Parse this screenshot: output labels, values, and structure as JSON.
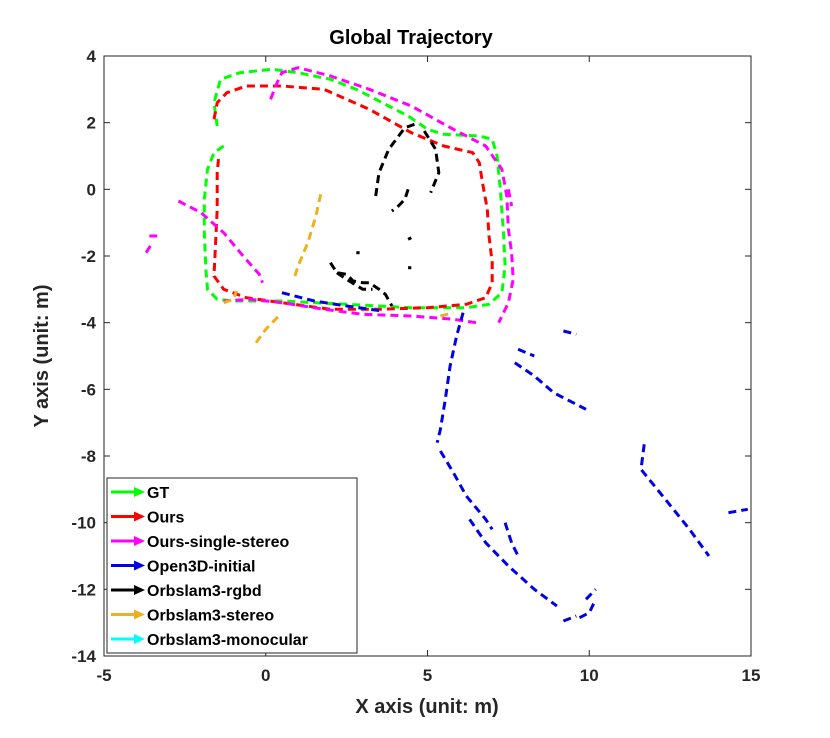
{
  "chart_data": {
    "type": "line",
    "title": "Global Trajectory",
    "xlabel": "X axis (unit: m)",
    "ylabel": "Y axis (unit: m)",
    "xlim": [
      -5,
      15
    ],
    "ylim": [
      -14,
      4
    ],
    "xticks": [
      "-5",
      "0",
      "5",
      "10",
      "15"
    ],
    "yticks": [
      "4",
      "2",
      "0",
      "-2",
      "-4",
      "-6",
      "-8",
      "-10",
      "-12",
      "-14"
    ],
    "xtick_values": [
      -5,
      0,
      5,
      10,
      15
    ],
    "ytick_values": [
      4,
      2,
      0,
      -2,
      -4,
      -6,
      -8,
      -10,
      -12,
      -14
    ],
    "grid": false,
    "legend_position": "bottom-left",
    "line_style": "dashed",
    "series": [
      {
        "name": "GT",
        "color": "#00ff00",
        "segments": [
          [
            [
              -1.3,
              1.3
            ],
            [
              -1.6,
              1.1
            ],
            [
              -1.8,
              0.6
            ],
            [
              -1.9,
              -0.3
            ],
            [
              -1.9,
              -1.3
            ],
            [
              -1.85,
              -2.4
            ],
            [
              -1.8,
              -3.0
            ],
            [
              -1.5,
              -3.3
            ],
            [
              -1.0,
              -3.35
            ],
            [
              0.5,
              -3.35
            ],
            [
              2.5,
              -3.45
            ],
            [
              4.5,
              -3.55
            ],
            [
              6.2,
              -3.55
            ],
            [
              6.9,
              -3.45
            ],
            [
              7.3,
              -3.1
            ],
            [
              7.4,
              -2.3
            ],
            [
              7.35,
              -1.3
            ],
            [
              7.25,
              0.0
            ],
            [
              7.15,
              1.0
            ],
            [
              7.0,
              1.5
            ],
            [
              6.6,
              1.6
            ],
            [
              5.5,
              1.65
            ],
            [
              5.0,
              1.8
            ],
            [
              4.4,
              2.2
            ],
            [
              3.6,
              2.6
            ],
            [
              2.8,
              3.0
            ],
            [
              2.0,
              3.3
            ],
            [
              1.0,
              3.5
            ],
            [
              0.2,
              3.6
            ],
            [
              -0.8,
              3.5
            ],
            [
              -1.4,
              3.3
            ],
            [
              -1.6,
              2.6
            ],
            [
              -1.5,
              1.9
            ]
          ]
        ]
      },
      {
        "name": "Ours",
        "color": "#ff0000",
        "segments": [
          [
            [
              -1.6,
              2.1
            ],
            [
              -1.5,
              2.6
            ],
            [
              -1.2,
              2.9
            ],
            [
              -0.6,
              3.1
            ],
            [
              0.5,
              3.1
            ],
            [
              1.8,
              3.0
            ],
            [
              3.2,
              2.4
            ],
            [
              4.5,
              1.7
            ],
            [
              5.5,
              1.3
            ],
            [
              6.4,
              1.1
            ],
            [
              6.6,
              0.8
            ],
            [
              6.7,
              0.2
            ],
            [
              6.85,
              -0.6
            ],
            [
              6.9,
              -1.4
            ],
            [
              7.0,
              -2.2
            ],
            [
              7.0,
              -2.8
            ],
            [
              6.8,
              -3.25
            ],
            [
              6.2,
              -3.45
            ],
            [
              5.0,
              -3.55
            ],
            [
              3.5,
              -3.6
            ],
            [
              2.0,
              -3.6
            ],
            [
              0.5,
              -3.4
            ],
            [
              -0.6,
              -3.25
            ],
            [
              -1.3,
              -3.0
            ],
            [
              -1.6,
              -2.6
            ],
            [
              -1.55,
              -1.6
            ],
            [
              -1.5,
              -0.6
            ],
            [
              -1.5,
              0.5
            ],
            [
              -1.45,
              1.0
            ]
          ]
        ]
      },
      {
        "name": "Ours-single-stereo",
        "color": "#ff00ff",
        "segments": [
          [
            [
              -3.7,
              -1.9
            ],
            [
              -3.5,
              -1.6
            ]
          ],
          [
            [
              -3.6,
              -1.4
            ],
            [
              -3.3,
              -1.4
            ]
          ],
          [
            [
              -2.7,
              -0.35
            ],
            [
              -2.0,
              -0.7
            ],
            [
              -1.3,
              -1.3
            ],
            [
              -0.7,
              -2.0
            ],
            [
              -0.2,
              -2.55
            ],
            [
              -0.1,
              -2.8
            ]
          ],
          [
            [
              0.15,
              2.7
            ],
            [
              0.35,
              3.2
            ],
            [
              0.5,
              3.5
            ],
            [
              1.0,
              3.65
            ],
            [
              2.0,
              3.4
            ],
            [
              3.2,
              3.0
            ],
            [
              4.5,
              2.5
            ],
            [
              5.8,
              1.8
            ],
            [
              6.8,
              1.3
            ],
            [
              7.3,
              0.6
            ],
            [
              7.45,
              -0.2
            ],
            [
              7.5,
              -1.2
            ],
            [
              7.6,
              -1.9
            ],
            [
              7.65,
              -2.7
            ],
            [
              7.5,
              -3.4
            ],
            [
              7.2,
              -4.0
            ]
          ],
          [
            [
              7.5,
              0.0
            ],
            [
              7.6,
              -0.5
            ]
          ],
          [
            [
              6.5,
              -4.0
            ],
            [
              5.8,
              -3.9
            ],
            [
              4.5,
              -3.8
            ],
            [
              3.0,
              -3.75
            ],
            [
              1.8,
              -3.6
            ],
            [
              0.5,
              -3.4
            ],
            [
              -0.5,
              -3.3
            ],
            [
              -1.3,
              -3.35
            ]
          ]
        ]
      },
      {
        "name": "Open3D-initial",
        "color": "#0000e6",
        "segments": [
          [
            [
              0.5,
              -3.1
            ],
            [
              1.5,
              -3.35
            ],
            [
              2.5,
              -3.5
            ],
            [
              3.6,
              -3.65
            ]
          ],
          [
            [
              6.1,
              -3.7
            ],
            [
              5.9,
              -4.4
            ],
            [
              5.7,
              -5.3
            ],
            [
              5.55,
              -6.3
            ],
            [
              5.4,
              -7.2
            ],
            [
              5.3,
              -7.6
            ]
          ],
          [
            [
              5.4,
              -7.85
            ],
            [
              5.8,
              -8.5
            ],
            [
              6.2,
              -9.2
            ],
            [
              6.8,
              -9.9
            ],
            [
              7.0,
              -10.2
            ]
          ],
          [
            [
              7.4,
              -10.0
            ],
            [
              7.6,
              -10.6
            ],
            [
              7.8,
              -11.0
            ]
          ],
          [
            [
              6.3,
              -9.9
            ],
            [
              6.8,
              -10.6
            ],
            [
              7.5,
              -11.3
            ],
            [
              8.3,
              -12.0
            ],
            [
              9.0,
              -12.5
            ]
          ],
          [
            [
              9.2,
              -12.95
            ],
            [
              9.6,
              -12.8
            ]
          ],
          [
            [
              9.7,
              -12.85
            ],
            [
              10.0,
              -12.7
            ],
            [
              10.15,
              -12.4
            ]
          ],
          [
            [
              9.9,
              -12.3
            ],
            [
              10.2,
              -12.0
            ]
          ],
          [
            [
              7.8,
              -4.8
            ],
            [
              8.3,
              -5.0
            ]
          ],
          [
            [
              7.7,
              -5.2
            ],
            [
              8.3,
              -5.6
            ],
            [
              8.9,
              -6.1
            ],
            [
              9.5,
              -6.4
            ],
            [
              9.9,
              -6.6
            ]
          ],
          [
            [
              9.2,
              -4.25
            ],
            [
              9.6,
              -4.35
            ]
          ],
          [
            [
              11.7,
              -7.65
            ],
            [
              11.6,
              -8.4
            ],
            [
              12.1,
              -9.0
            ],
            [
              12.6,
              -9.6
            ],
            [
              13.1,
              -10.2
            ],
            [
              13.7,
              -11.0
            ]
          ],
          [
            [
              14.3,
              -9.7
            ],
            [
              14.9,
              -9.6
            ]
          ]
        ]
      },
      {
        "name": "Orbslam3-rgbd",
        "color": "#000000",
        "segments": [
          [
            [
              3.4,
              -0.2
            ],
            [
              3.5,
              0.5
            ],
            [
              3.8,
              1.2
            ],
            [
              4.3,
              1.85
            ],
            [
              4.6,
              1.95
            ]
          ],
          [
            [
              4.9,
              1.75
            ],
            [
              5.25,
              1.2
            ],
            [
              5.35,
              0.5
            ],
            [
              5.1,
              -0.1
            ]
          ],
          [
            [
              4.4,
              0.0
            ],
            [
              4.3,
              -0.3
            ],
            [
              4.1,
              -0.5
            ],
            [
              3.9,
              -0.65
            ]
          ],
          [
            [
              4.5,
              -1.45
            ],
            [
              4.4,
              -1.5
            ]
          ],
          [
            [
              2.8,
              -1.9
            ],
            [
              2.9,
              -1.9
            ]
          ],
          [
            [
              2.0,
              -2.2
            ],
            [
              2.2,
              -2.5
            ],
            [
              2.5,
              -2.55
            ],
            [
              2.7,
              -2.75
            ],
            [
              3.0,
              -2.8
            ],
            [
              3.2,
              -2.8
            ],
            [
              3.5,
              -3.0
            ],
            [
              3.7,
              -3.15
            ],
            [
              3.9,
              -3.5
            ]
          ],
          [
            [
              2.2,
              -2.5
            ],
            [
              2.5,
              -2.7
            ],
            [
              3.0,
              -3.0
            ],
            [
              3.3,
              -3.0
            ]
          ],
          [
            [
              4.4,
              -2.35
            ],
            [
              4.5,
              -2.35
            ]
          ]
        ]
      },
      {
        "name": "Orbslam3-stereo",
        "color": "#edb120",
        "segments": [
          [
            [
              1.7,
              -0.15
            ],
            [
              1.55,
              -0.8
            ],
            [
              1.3,
              -1.6
            ],
            [
              1.0,
              -2.3
            ],
            [
              0.9,
              -2.6
            ]
          ],
          [
            [
              -1.3,
              -3.4
            ],
            [
              -1.0,
              -3.3
            ],
            [
              -0.9,
              -3.05
            ]
          ],
          [
            [
              -0.3,
              -4.6
            ],
            [
              0.0,
              -4.2
            ],
            [
              0.4,
              -3.8
            ]
          ],
          [
            [
              5.4,
              -3.8
            ],
            [
              5.8,
              -3.7
            ]
          ]
        ]
      },
      {
        "name": "Orbslam3-monocular",
        "color": "#00ffff",
        "segments": []
      }
    ]
  }
}
